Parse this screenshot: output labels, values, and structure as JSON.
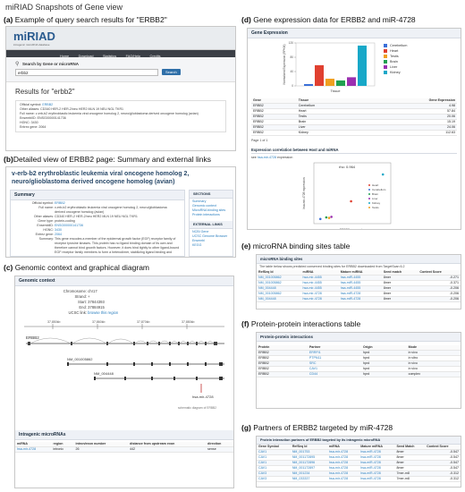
{
  "figure_title": "miRIAD Snapshots of Gene view",
  "panels": {
    "a": {
      "letter": "(a)",
      "caption": " Example of query search results for \"ERBB2\""
    },
    "b": {
      "letter": "(b)",
      "caption": "Detailed view of ERBB2 page: Summary and external links"
    },
    "c": {
      "letter": "(c)",
      "caption": " Genomic context and graphical diagram"
    },
    "d": {
      "letter": "(d)",
      "caption": " Gene expression data for ERBB2 and miR-4728"
    },
    "e": {
      "letter": "(e)",
      "caption": " microRNA binding sites table"
    },
    "f": {
      "letter": "(f)",
      "caption": " Protein-protein interactions table"
    },
    "g": {
      "letter": "(g)",
      "caption": " Partners of ERBB2 targeted by miR-4728"
    }
  },
  "app": {
    "logo": "miRIAD",
    "logo_sub": "intragenic microRNA database",
    "nav": [
      "Home",
      "Download",
      "Statistics",
      "FAQ/Help",
      "Credits"
    ],
    "search_label": "Search by Gene or microRNA",
    "search_value": "erbb2",
    "search_button": "Search",
    "results_title": "Results for \"erbb2\"",
    "result_fields": [
      {
        "k": "Official symbol:",
        "v": "ERBB2",
        "link": true
      },
      {
        "k": "Other aliases:",
        "v": "CD340 HER-2 HER-2/neu HER2 MLN 19 NEU NGL TKR1",
        "link": false
      },
      {
        "k": "Full name:",
        "v": "v-erb-b2 erythroblastic leukemia viral oncogene homolog 2, neuro/glioblastoma derived oncogene homolog (avian)",
        "link": false
      },
      {
        "k": "EnsemblID:",
        "v": "ENSG00000141736",
        "link": false
      },
      {
        "k": "HGNC:",
        "v": "3430",
        "link": false
      },
      {
        "k": "Entrez gene:",
        "v": "2064",
        "link": false
      }
    ]
  },
  "detail": {
    "title": "v-erb-b2 erythroblastic leukemia viral oncogene homolog 2, neuro/glioblastoma derived oncogene homolog (avian)",
    "summary_head": "Summary",
    "fields": [
      {
        "k": "Official symbol:",
        "v": "ERBB2"
      },
      {
        "k": "Full name:",
        "v": "v-erb-b2 erythroblastic leukemia viral oncogene homolog 2, neuro/glioblastoma derived oncogene homolog (avian)"
      },
      {
        "k": "Other aliases:",
        "v": "CD340 HER-2 HER-2/neu HER2 MLN 19 NEU NGL TKR1"
      },
      {
        "k": "Gene type:",
        "v": "protein-coding"
      },
      {
        "k": "EnsemblID:",
        "v": "ENSG00000141736"
      },
      {
        "k": "HGNC:",
        "v": "3430"
      },
      {
        "k": "Entrez gene:",
        "v": "2064"
      },
      {
        "k": "Summary:",
        "v": "This gene encodes a member of the epidermal growth factor (EGF) receptor family of receptor tyrosine kinases. This protein has no ligand binding domain of its own and therefore cannot bind growth factors. However, it does bind tightly to other ligand-bound EGF receptor family members to form a heterodimer, stabilizing ligand binding and enhancing kinase-mediated activation of"
      }
    ],
    "sections_head": "SECTIONS",
    "sections": [
      "Summary",
      "Genomic context",
      "MicroRNA binding sites",
      "Protein interactions"
    ],
    "external_head": "EXTERNAL LINKS",
    "external": [
      "NCBI Gene",
      "UCSC Genome Browser",
      "Ensembl",
      "KEGG"
    ]
  },
  "genomic": {
    "head": "Genomic context",
    "fields": [
      {
        "k": "Chromosome:",
        "v": "chr17"
      },
      {
        "k": "Strand:",
        "v": "+"
      },
      {
        "k": "Start:",
        "v": "37844393"
      },
      {
        "k": "End:",
        "v": "37884915"
      },
      {
        "k": "UCSC link:",
        "v": "browse this region"
      }
    ],
    "ticks": [
      "37,850kb",
      "37,860kb",
      "37,870kb",
      "37,880kb"
    ],
    "gene_label": "ERBB2",
    "transcripts": [
      "NM_001005862",
      "NM_004448"
    ],
    "mirna_label": "hsa-mir-4728",
    "diagram_caption": "schematic diagram of ERBB2",
    "intragenic_head": "Intragenic microRNAs",
    "table_headers": [
      "miRNA",
      "region",
      "intron/exon number",
      "distance from upstream exon",
      "direction"
    ],
    "table_row": [
      "hsa-mir-4728",
      "intronic",
      "26",
      "442",
      "sense"
    ]
  },
  "expression": {
    "head": "Gene Expression",
    "legend": [
      "Cerebellum",
      "Heart",
      "Testis",
      "Brain",
      "Liver",
      "Kidney"
    ],
    "xlabel": "Tissue",
    "ylabel": "Normalized Expression (RPKM)",
    "table_headers": [
      "Gene",
      "Tissue",
      "Gene Expression"
    ],
    "rows": [
      [
        "ERBB2",
        "Cerebellum",
        "4.98"
      ],
      [
        "ERBB2",
        "Heart",
        "57.84"
      ],
      [
        "ERBB2",
        "Testis",
        "20.06"
      ],
      [
        "ERBB2",
        "Brain",
        "15.19"
      ],
      [
        "ERBB2",
        "Liver",
        "24.06"
      ],
      [
        "ERBB2",
        "Kidney",
        "112.63"
      ]
    ],
    "page_note": "Page 1 of 1",
    "corr_head": "Expression correlation between Host and miRNA",
    "corr_note_pre": "see",
    "corr_link": "hsa-mir-4728",
    "corr_note_post": "expression",
    "scatter_label": "rho: 0.964",
    "scatter_legend": [
      "Heart",
      "Cerebellum",
      "Brain",
      "Liver",
      "Kidney",
      "Testis"
    ],
    "scatter_ylabel": "hsa-mir-4728 expression",
    "scatter_xlabel": "ERBB2 expression"
  },
  "binding": {
    "head": "microRNA binding sites",
    "note": "The table below shows predicted conserved binding sites for ERBB2 downloaded from TargetScan 6.2",
    "headers": [
      "RefSeq Id",
      "miRNA",
      "Mature miRNA",
      "Seed match",
      "Context Score"
    ],
    "rows": [
      [
        "NM_001005862",
        "hsa-mir-4455",
        "hsa-miR-4455",
        "8mer",
        "-0.271"
      ],
      [
        "NM_001005862",
        "hsa-mir-4455",
        "hsa-miR-4455",
        "8mer",
        "-0.371"
      ],
      [
        "NM_004448",
        "hsa-mir-4455",
        "hsa-miR-4455",
        "8mer",
        "-0.206"
      ],
      [
        "NM_001005862",
        "hsa-mir-4728",
        "hsa-miR-4728",
        "8mer",
        "-0.206"
      ],
      [
        "NM_004448",
        "hsa-mir-4728",
        "hsa-miR-4728",
        "8mer",
        "-0.206"
      ]
    ]
  },
  "ppi": {
    "head": "Protein-protein interactions",
    "headers": [
      "Protein",
      "Partner",
      "Origin",
      "Mode"
    ],
    "rows": [
      [
        "ERBB2",
        "ERRFI1",
        "hprd",
        "in vivo"
      ],
      [
        "ERBB2",
        "PTPN11",
        "hprd",
        "in vitro"
      ],
      [
        "ERBB2",
        "SRC",
        "hprd",
        "in vivo"
      ],
      [
        "ERBB2",
        "CAV1",
        "hprd",
        "in vivo"
      ],
      [
        "ERBB2",
        "CD44",
        "hprd",
        "complex"
      ]
    ]
  },
  "partners": {
    "head": "Protein interaction partners of ERBB2 targeted by its intragenic microRNA",
    "headers": [
      "Gene Symbol",
      "RefSeq Id",
      "miRNA",
      "Mature miRNA",
      "Seed Match",
      "Context Score"
    ],
    "rows": [
      [
        "CAV1",
        "NM_001753",
        "hsa-mir-4728",
        "hsa-miR-4728",
        "8mer",
        "-0.547"
      ],
      [
        "CAV1",
        "NM_001172895",
        "hsa-mir-4728",
        "hsa-miR-4728",
        "8mer",
        "-0.547"
      ],
      [
        "CAV1",
        "NM_001172896",
        "hsa-mir-4728",
        "hsa-miR-4728",
        "8mer",
        "-0.547"
      ],
      [
        "CAV1",
        "NM_001172897",
        "hsa-mir-4728",
        "hsa-miR-4728",
        "8mer",
        "-0.547"
      ],
      [
        "CAV3",
        "NM_001234",
        "hsa-mir-4728",
        "hsa-miR-4728",
        "7mer-m8",
        "-0.312"
      ],
      [
        "CAV3",
        "NM_033337",
        "hsa-mir-4728",
        "hsa-miR-4728",
        "7mer-m8",
        "-0.312"
      ]
    ]
  },
  "chart_data": [
    {
      "type": "bar",
      "title": "Gene Expression",
      "xlabel": "Tissue",
      "ylabel": "Normalized Expression (RPKM)",
      "categories": [
        "Cerebellum",
        "Heart",
        "Testis",
        "Brain",
        "Liver",
        "Kidney"
      ],
      "values": [
        4.98,
        57.84,
        20.06,
        15.19,
        24.06,
        112.63
      ],
      "colors": [
        "#3a6fd8",
        "#e04030",
        "#f0a020",
        "#20a050",
        "#9b2fb0",
        "#18a8c8"
      ],
      "ylim": [
        0,
        120
      ],
      "legend": "right"
    },
    {
      "type": "scatter",
      "xlabel": "ERBB2 expression",
      "ylabel": "hsa-mir-4728 expression",
      "annotation": "rho: 0.964",
      "series": [
        {
          "name": "Heart",
          "color": "#e04030",
          "x": 57.84,
          "y": 0.35
        },
        {
          "name": "Cerebellum",
          "color": "#3a6fd8",
          "x": 4.98,
          "y": 0.02
        },
        {
          "name": "Brain",
          "color": "#20a050",
          "x": 15.19,
          "y": 0.05
        },
        {
          "name": "Liver",
          "color": "#9b2fb0",
          "x": 24.06,
          "y": 0.06
        },
        {
          "name": "Kidney",
          "color": "#18a8c8",
          "x": 112.63,
          "y": 0.85
        },
        {
          "name": "Testis",
          "color": "#f0a020",
          "x": 20.06,
          "y": 0.04
        }
      ]
    }
  ]
}
